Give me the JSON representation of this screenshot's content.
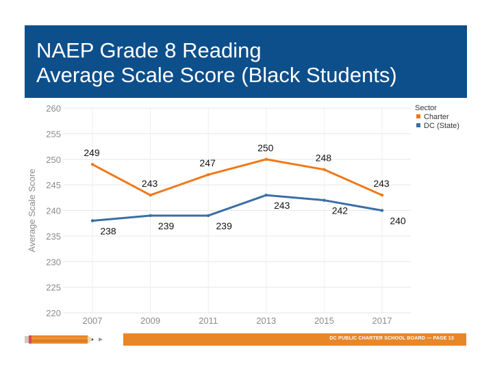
{
  "title": {
    "line1": "NAEP Grade 8 Reading",
    "line2": "Average Scale Score (Black Students)"
  },
  "footer": {
    "text": "DC PUBLIC CHARTER SCHOOL BOARD — PAGE 13"
  },
  "icons": {
    "pencil": "pencil-icon",
    "arrow": "play-arrow-icon"
  },
  "colors": {
    "banner": "#0d4f8b",
    "footer_bar": "#e7872a"
  },
  "chart_data": {
    "type": "line",
    "x": [
      "2007",
      "2009",
      "2011",
      "2013",
      "2015",
      "2017"
    ],
    "ylabel": "Average Scale Score",
    "ylim": [
      220,
      260
    ],
    "yticks": [
      220,
      225,
      230,
      235,
      240,
      245,
      250,
      255,
      260
    ],
    "grid": true,
    "legend_title": "Sector",
    "legend_position": "top-right",
    "series": [
      {
        "name": "Charter",
        "color": "#f07818",
        "values": [
          249,
          243,
          247,
          250,
          248,
          243
        ],
        "label_position": "above"
      },
      {
        "name": "DC (State)",
        "color": "#3a6ea5",
        "values": [
          238,
          239,
          239,
          243,
          242,
          240
        ],
        "label_position": "below"
      }
    ]
  }
}
